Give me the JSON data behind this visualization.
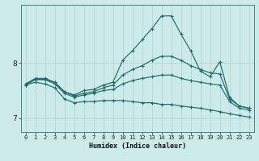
{
  "xlabel": "Humidex (Indice chaleur)",
  "ylabel": "",
  "bg_color": "#cdeaea",
  "grid_color": "#b8d8d8",
  "line_color": "#1a6e6a",
  "xlim": [
    -0.5,
    23.5
  ],
  "ylim": [
    6.75,
    9.05
  ],
  "yticks": [
    7,
    8
  ],
  "xticks": [
    0,
    1,
    2,
    3,
    4,
    5,
    6,
    7,
    8,
    9,
    10,
    11,
    12,
    13,
    14,
    15,
    16,
    17,
    18,
    19,
    20,
    21,
    22,
    23
  ],
  "lines": [
    {
      "x": [
        0,
        1,
        2,
        3,
        4,
        5,
        6,
        7,
        8,
        9,
        10,
        11,
        12,
        13,
        14,
        15,
        16,
        17,
        18,
        19,
        20,
        21,
        22,
        23
      ],
      "y": [
        7.62,
        7.72,
        7.72,
        7.65,
        7.48,
        7.42,
        7.5,
        7.52,
        7.6,
        7.65,
        8.05,
        8.22,
        8.42,
        8.62,
        8.85,
        8.85,
        8.52,
        8.22,
        7.85,
        7.75,
        8.02,
        7.38,
        7.22,
        7.18
      ]
    },
    {
      "x": [
        0,
        1,
        2,
        3,
        4,
        5,
        6,
        7,
        8,
        9,
        10,
        11,
        12,
        13,
        14,
        15,
        16,
        17,
        18,
        19,
        20,
        21,
        22,
        23
      ],
      "y": [
        7.6,
        7.7,
        7.7,
        7.65,
        7.48,
        7.4,
        7.45,
        7.48,
        7.55,
        7.6,
        7.78,
        7.88,
        7.95,
        8.05,
        8.12,
        8.12,
        8.05,
        7.95,
        7.88,
        7.82,
        7.8,
        7.35,
        7.22,
        7.18
      ]
    },
    {
      "x": [
        0,
        1,
        2,
        3,
        4,
        5,
        6,
        7,
        8,
        9,
        10,
        11,
        12,
        13,
        14,
        15,
        16,
        17,
        18,
        19,
        20,
        21,
        22,
        23
      ],
      "y": [
        7.6,
        7.7,
        7.7,
        7.62,
        7.45,
        7.38,
        7.42,
        7.45,
        7.5,
        7.52,
        7.62,
        7.68,
        7.72,
        7.75,
        7.78,
        7.78,
        7.72,
        7.68,
        7.65,
        7.62,
        7.6,
        7.3,
        7.18,
        7.15
      ]
    },
    {
      "x": [
        0,
        1,
        2,
        3,
        4,
        5,
        6,
        7,
        8,
        9,
        10,
        11,
        12,
        13,
        14,
        15,
        16,
        17,
        18,
        19,
        20,
        21,
        22,
        23
      ],
      "y": [
        7.6,
        7.65,
        7.62,
        7.55,
        7.35,
        7.28,
        7.3,
        7.3,
        7.32,
        7.32,
        7.32,
        7.3,
        7.28,
        7.28,
        7.25,
        7.25,
        7.22,
        7.2,
        7.18,
        7.15,
        7.12,
        7.08,
        7.05,
        7.02
      ]
    }
  ]
}
